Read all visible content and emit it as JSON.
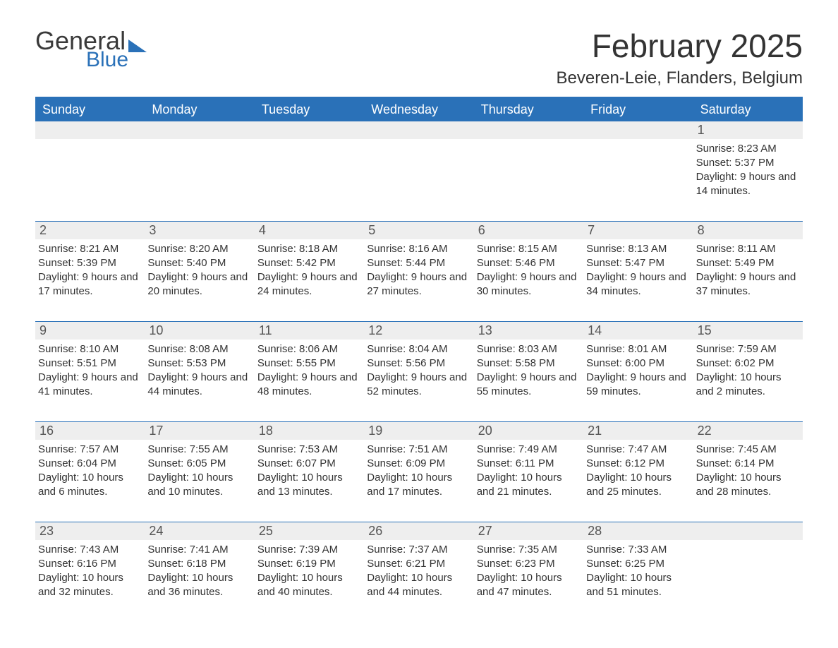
{
  "logo": {
    "text1": "General",
    "text2": "Blue"
  },
  "title": "February 2025",
  "location": "Beveren-Leie, Flanders, Belgium",
  "colors": {
    "accent": "#2a71b8",
    "headerBg": "#2a71b8",
    "headerText": "#ffffff",
    "dayNumBg": "#eeeeee",
    "text": "#333333",
    "background": "#ffffff"
  },
  "weekdays": [
    "Sunday",
    "Monday",
    "Tuesday",
    "Wednesday",
    "Thursday",
    "Friday",
    "Saturday"
  ],
  "weeks": [
    [
      null,
      null,
      null,
      null,
      null,
      null,
      {
        "n": "1",
        "sunrise": "8:23 AM",
        "sunset": "5:37 PM",
        "daylight": "9 hours and 14 minutes."
      }
    ],
    [
      {
        "n": "2",
        "sunrise": "8:21 AM",
        "sunset": "5:39 PM",
        "daylight": "9 hours and 17 minutes."
      },
      {
        "n": "3",
        "sunrise": "8:20 AM",
        "sunset": "5:40 PM",
        "daylight": "9 hours and 20 minutes."
      },
      {
        "n": "4",
        "sunrise": "8:18 AM",
        "sunset": "5:42 PM",
        "daylight": "9 hours and 24 minutes."
      },
      {
        "n": "5",
        "sunrise": "8:16 AM",
        "sunset": "5:44 PM",
        "daylight": "9 hours and 27 minutes."
      },
      {
        "n": "6",
        "sunrise": "8:15 AM",
        "sunset": "5:46 PM",
        "daylight": "9 hours and 30 minutes."
      },
      {
        "n": "7",
        "sunrise": "8:13 AM",
        "sunset": "5:47 PM",
        "daylight": "9 hours and 34 minutes."
      },
      {
        "n": "8",
        "sunrise": "8:11 AM",
        "sunset": "5:49 PM",
        "daylight": "9 hours and 37 minutes."
      }
    ],
    [
      {
        "n": "9",
        "sunrise": "8:10 AM",
        "sunset": "5:51 PM",
        "daylight": "9 hours and 41 minutes."
      },
      {
        "n": "10",
        "sunrise": "8:08 AM",
        "sunset": "5:53 PM",
        "daylight": "9 hours and 44 minutes."
      },
      {
        "n": "11",
        "sunrise": "8:06 AM",
        "sunset": "5:55 PM",
        "daylight": "9 hours and 48 minutes."
      },
      {
        "n": "12",
        "sunrise": "8:04 AM",
        "sunset": "5:56 PM",
        "daylight": "9 hours and 52 minutes."
      },
      {
        "n": "13",
        "sunrise": "8:03 AM",
        "sunset": "5:58 PM",
        "daylight": "9 hours and 55 minutes."
      },
      {
        "n": "14",
        "sunrise": "8:01 AM",
        "sunset": "6:00 PM",
        "daylight": "9 hours and 59 minutes."
      },
      {
        "n": "15",
        "sunrise": "7:59 AM",
        "sunset": "6:02 PM",
        "daylight": "10 hours and 2 minutes."
      }
    ],
    [
      {
        "n": "16",
        "sunrise": "7:57 AM",
        "sunset": "6:04 PM",
        "daylight": "10 hours and 6 minutes."
      },
      {
        "n": "17",
        "sunrise": "7:55 AM",
        "sunset": "6:05 PM",
        "daylight": "10 hours and 10 minutes."
      },
      {
        "n": "18",
        "sunrise": "7:53 AM",
        "sunset": "6:07 PM",
        "daylight": "10 hours and 13 minutes."
      },
      {
        "n": "19",
        "sunrise": "7:51 AM",
        "sunset": "6:09 PM",
        "daylight": "10 hours and 17 minutes."
      },
      {
        "n": "20",
        "sunrise": "7:49 AM",
        "sunset": "6:11 PM",
        "daylight": "10 hours and 21 minutes."
      },
      {
        "n": "21",
        "sunrise": "7:47 AM",
        "sunset": "6:12 PM",
        "daylight": "10 hours and 25 minutes."
      },
      {
        "n": "22",
        "sunrise": "7:45 AM",
        "sunset": "6:14 PM",
        "daylight": "10 hours and 28 minutes."
      }
    ],
    [
      {
        "n": "23",
        "sunrise": "7:43 AM",
        "sunset": "6:16 PM",
        "daylight": "10 hours and 32 minutes."
      },
      {
        "n": "24",
        "sunrise": "7:41 AM",
        "sunset": "6:18 PM",
        "daylight": "10 hours and 36 minutes."
      },
      {
        "n": "25",
        "sunrise": "7:39 AM",
        "sunset": "6:19 PM",
        "daylight": "10 hours and 40 minutes."
      },
      {
        "n": "26",
        "sunrise": "7:37 AM",
        "sunset": "6:21 PM",
        "daylight": "10 hours and 44 minutes."
      },
      {
        "n": "27",
        "sunrise": "7:35 AM",
        "sunset": "6:23 PM",
        "daylight": "10 hours and 47 minutes."
      },
      {
        "n": "28",
        "sunrise": "7:33 AM",
        "sunset": "6:25 PM",
        "daylight": "10 hours and 51 minutes."
      },
      null
    ]
  ],
  "labels": {
    "sunrise": "Sunrise: ",
    "sunset": "Sunset: ",
    "daylight": "Daylight: "
  }
}
